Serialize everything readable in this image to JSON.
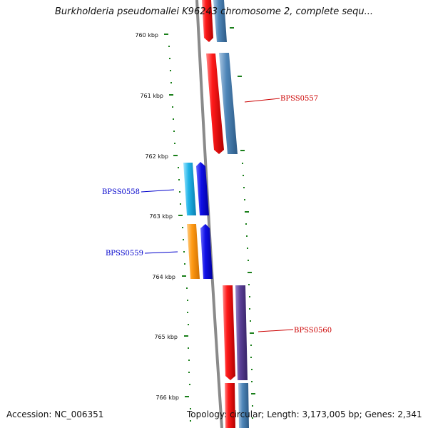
{
  "title": "Burkholderia pseudomallei K96243 chromosome 2, complete sequ...",
  "footer": {
    "accession": "Accession: NC_006351",
    "summary": "Topology: circular; Length: 3,173,005 bp; Genes: 2,341"
  },
  "ticks": [
    "760 kbp",
    "761 kbp",
    "762 kbp",
    "763 kbp",
    "764 kbp",
    "765 kbp",
    "766 kbp"
  ],
  "gene_labels": [
    {
      "text": "BPSS0557",
      "color": "#cc0000"
    },
    {
      "text": "BPSS0558",
      "color": "#0000cc"
    },
    {
      "text": "BPSS0559",
      "color": "#0000cc"
    },
    {
      "text": "BPSS0560",
      "color": "#cc0000"
    }
  ],
  "colors": {
    "backbone": "#8a8a8a",
    "ticks": "#1a7f1a",
    "cds_red": "#e8141c",
    "gene_steelblue": "#4f86b8",
    "gene_cyan": "#22b4e8",
    "gene_blue": "#1010e6",
    "gene_orange": "#ff9a14",
    "gene_purple": "#5a3f96"
  }
}
